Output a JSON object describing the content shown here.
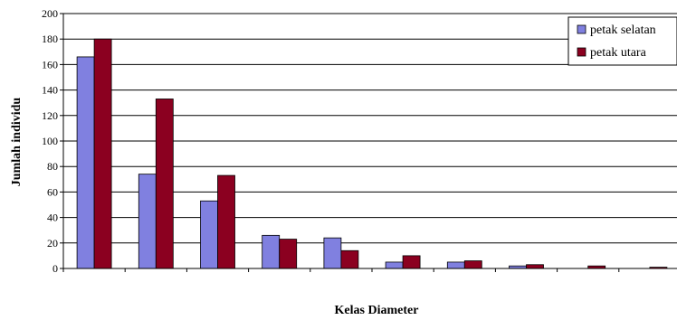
{
  "chart_data": {
    "type": "bar",
    "title": "",
    "xlabel": "Kelas Diameter",
    "ylabel": "Jumlah individu",
    "ylim": [
      0,
      200
    ],
    "yticks": [
      0,
      20,
      40,
      60,
      80,
      100,
      120,
      140,
      160,
      180,
      200
    ],
    "grid": true,
    "legend_position": "top-right",
    "categories": [
      "",
      "",
      "",
      "",
      "",
      "",
      "",
      "",
      "",
      ""
    ],
    "series": [
      {
        "name": "petak selatan",
        "color": "#8080e0",
        "values": [
          166,
          74,
          53,
          26,
          24,
          5,
          5,
          2,
          0,
          0
        ]
      },
      {
        "name": "petak utara",
        "color": "#8b0020",
        "values": [
          180,
          133,
          73,
          23,
          14,
          10,
          6,
          3,
          2,
          1
        ]
      }
    ]
  }
}
